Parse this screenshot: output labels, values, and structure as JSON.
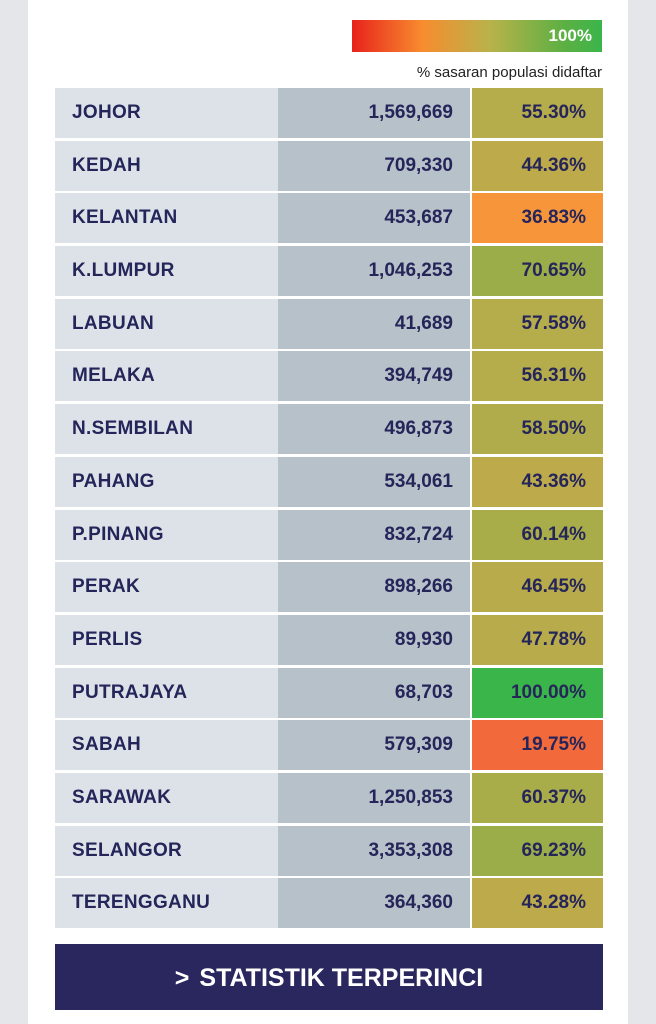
{
  "legend": {
    "max_label": "100%",
    "caption": "% sasaran populasi didaftar",
    "gradient_colors": [
      "#e8221c",
      "#f78c2e",
      "#b9b24a",
      "#5cb043",
      "#3ab54a"
    ]
  },
  "colors": {
    "name_bg": "#dde2e8",
    "pop_bg": "#b6c1c9",
    "text": "#25255a",
    "button_bg": "#29275e"
  },
  "chart_data": {
    "type": "table",
    "columns": [
      "state",
      "registered",
      "percent_target"
    ],
    "rows": [
      {
        "state": "JOHOR",
        "value": "1,569,669",
        "percent": "55.30%",
        "color": "#b5ac4c"
      },
      {
        "state": "KEDAH",
        "value": "709,330",
        "percent": "44.36%",
        "color": "#bcaa4b"
      },
      {
        "state": "KELANTAN",
        "value": "453,687",
        "percent": "36.83%",
        "color": "#f7953a"
      },
      {
        "state": "K.LUMPUR",
        "value": "1,046,253",
        "percent": "70.65%",
        "color": "#9bad48"
      },
      {
        "state": "LABUAN",
        "value": "41,689",
        "percent": "57.58%",
        "color": "#b5ac4c"
      },
      {
        "state": "MELAKA",
        "value": "394,749",
        "percent": "56.31%",
        "color": "#b5ac4c"
      },
      {
        "state": "N.SEMBILAN",
        "value": "496,873",
        "percent": "58.50%",
        "color": "#b0ac4b"
      },
      {
        "state": "PAHANG",
        "value": "534,061",
        "percent": "43.36%",
        "color": "#bcaa4b"
      },
      {
        "state": "P.PINANG",
        "value": "832,724",
        "percent": "60.14%",
        "color": "#a8ad4a"
      },
      {
        "state": "PERAK",
        "value": "898,266",
        "percent": "46.45%",
        "color": "#b8ab4b"
      },
      {
        "state": "PERLIS",
        "value": "89,930",
        "percent": "47.78%",
        "color": "#b8ab4b"
      },
      {
        "state": "PUTRAJAYA",
        "value": "68,703",
        "percent": "100.00%",
        "color": "#3ab54a"
      },
      {
        "state": "SABAH",
        "value": "579,309",
        "percent": "19.75%",
        "color": "#f26a3c"
      },
      {
        "state": "SARAWAK",
        "value": "1,250,853",
        "percent": "60.37%",
        "color": "#a8ad4a"
      },
      {
        "state": "SELANGOR",
        "value": "3,353,308",
        "percent": "69.23%",
        "color": "#9bad48"
      },
      {
        "state": "TERENGGANU",
        "value": "364,360",
        "percent": "43.28%",
        "color": "#bcaa4b"
      }
    ]
  },
  "cta": {
    "chevron": ">",
    "label": "STATISTIK TERPERINCI"
  }
}
